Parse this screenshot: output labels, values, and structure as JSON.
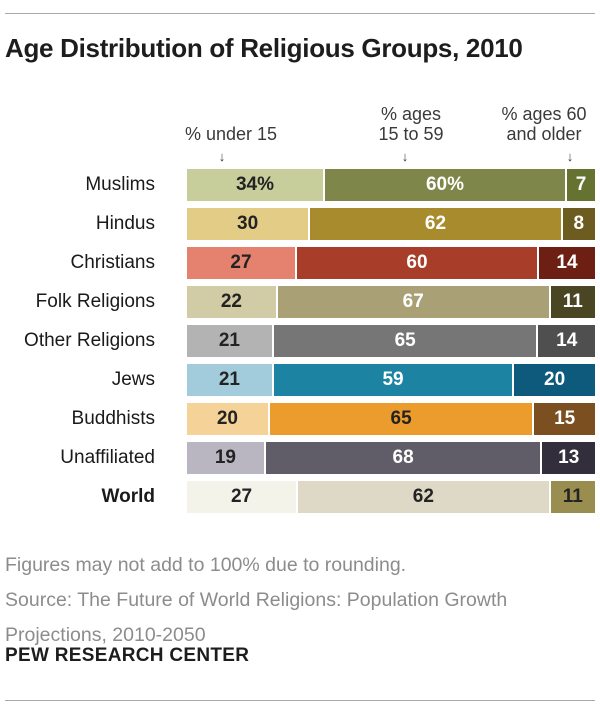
{
  "title": "Age Distribution of Religious Groups, 2010",
  "columns": [
    {
      "line1": "",
      "line2": "% under 15",
      "arrow": "↓"
    },
    {
      "line1": "% ages",
      "line2": "15 to 59",
      "arrow": "↓"
    },
    {
      "line1": "% ages 60",
      "line2": "and older",
      "arrow": "↓"
    }
  ],
  "rows": [
    {
      "group": "Muslims",
      "bold": false,
      "segments": [
        {
          "value": 34,
          "display": "34%",
          "color": "#c7ce9b",
          "text": "#232323"
        },
        {
          "value": 60,
          "display": "60%",
          "color": "#7e8749",
          "text": "#ffffff"
        },
        {
          "value": 7,
          "display": "7",
          "color": "#66722f",
          "text": "#ffffff"
        }
      ]
    },
    {
      "group": "Hindus",
      "bold": false,
      "segments": [
        {
          "value": 30,
          "display": "30",
          "color": "#e3cc85",
          "text": "#232323"
        },
        {
          "value": 62,
          "display": "62",
          "color": "#a88b2d",
          "text": "#ffffff"
        },
        {
          "value": 8,
          "display": "8",
          "color": "#6c5c20",
          "text": "#ffffff"
        }
      ]
    },
    {
      "group": "Christians",
      "bold": false,
      "segments": [
        {
          "value": 27,
          "display": "27",
          "color": "#e5816f",
          "text": "#232323"
        },
        {
          "value": 60,
          "display": "60",
          "color": "#a83d29",
          "text": "#ffffff"
        },
        {
          "value": 14,
          "display": "14",
          "color": "#6e1f14",
          "text": "#ffffff"
        }
      ]
    },
    {
      "group": "Folk Religions",
      "bold": false,
      "segments": [
        {
          "value": 22,
          "display": "22",
          "color": "#d2cca6",
          "text": "#232323"
        },
        {
          "value": 67,
          "display": "67",
          "color": "#a9a076",
          "text": "#ffffff"
        },
        {
          "value": 11,
          "display": "11",
          "color": "#4a4522",
          "text": "#ffffff"
        }
      ]
    },
    {
      "group": "Other Religions",
      "bold": false,
      "segments": [
        {
          "value": 21,
          "display": "21",
          "color": "#b3b3b3",
          "text": "#232323"
        },
        {
          "value": 65,
          "display": "65",
          "color": "#767676",
          "text": "#ffffff"
        },
        {
          "value": 14,
          "display": "14",
          "color": "#4f4f4f",
          "text": "#ffffff"
        }
      ]
    },
    {
      "group": "Jews",
      "bold": false,
      "segments": [
        {
          "value": 21,
          "display": "21",
          "color": "#a2cbdb",
          "text": "#232323"
        },
        {
          "value": 59,
          "display": "59",
          "color": "#1d83a2",
          "text": "#ffffff"
        },
        {
          "value": 20,
          "display": "20",
          "color": "#0e5a7d",
          "text": "#ffffff"
        }
      ]
    },
    {
      "group": "Buddhists",
      "bold": false,
      "segments": [
        {
          "value": 20,
          "display": "20",
          "color": "#f4d298",
          "text": "#232323"
        },
        {
          "value": 65,
          "display": "65",
          "color": "#ec9c2c",
          "text": "#232323"
        },
        {
          "value": 15,
          "display": "15",
          "color": "#7b4f1f",
          "text": "#ffffff"
        }
      ]
    },
    {
      "group": "Unaffiliated",
      "bold": false,
      "segments": [
        {
          "value": 19,
          "display": "19",
          "color": "#b9b6c1",
          "text": "#232323"
        },
        {
          "value": 68,
          "display": "68",
          "color": "#615d68",
          "text": "#ffffff"
        },
        {
          "value": 13,
          "display": "13",
          "color": "#332e3b",
          "text": "#ffffff"
        }
      ]
    },
    {
      "group": "World",
      "bold": true,
      "segments": [
        {
          "value": 27,
          "display": "27",
          "color": "#f4f3ea",
          "text": "#232323"
        },
        {
          "value": 62,
          "display": "62",
          "color": "#ddd9c6",
          "text": "#232323"
        },
        {
          "value": 11,
          "display": "11",
          "color": "#9a8d50",
          "text": "#232323"
        }
      ]
    }
  ],
  "notes": {
    "line1": "Figures may not add to 100% due to rounding.",
    "line2": "Source: The Future of World Religions: Population Growth Projections, 2010-2050"
  },
  "branding": "PEW RESEARCH CENTER",
  "chart_data": {
    "type": "bar",
    "stacked": true,
    "orientation": "horizontal",
    "title": "Age Distribution of Religious Groups, 2010",
    "categories": [
      "Muslims",
      "Hindus",
      "Christians",
      "Folk Religions",
      "Other Religions",
      "Jews",
      "Buddhists",
      "Unaffiliated",
      "World"
    ],
    "series": [
      {
        "name": "% under 15",
        "values": [
          34,
          30,
          27,
          22,
          21,
          21,
          20,
          19,
          27
        ]
      },
      {
        "name": "% ages 15 to 59",
        "values": [
          60,
          62,
          60,
          67,
          65,
          59,
          65,
          68,
          62
        ]
      },
      {
        "name": "% ages 60 and older",
        "values": [
          7,
          8,
          14,
          11,
          14,
          20,
          15,
          13,
          11
        ]
      }
    ],
    "value_unit": "percent",
    "xlim": [
      0,
      100
    ],
    "legend_position": "above-columns",
    "grid": false,
    "footnote": "Figures may not add to 100% due to rounding.",
    "source": "The Future of World Religions: Population Growth Projections, 2010-2050"
  }
}
